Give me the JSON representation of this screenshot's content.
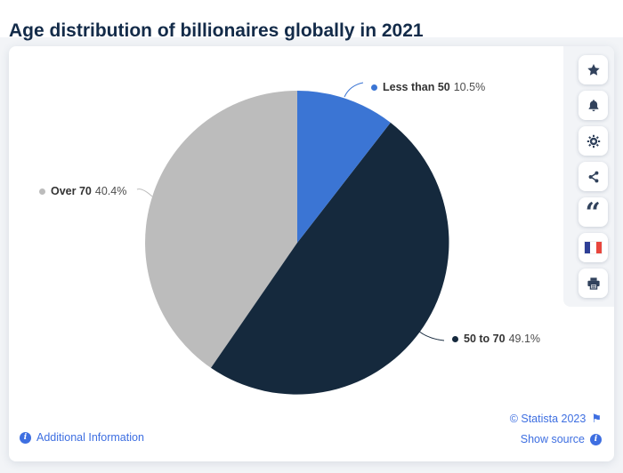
{
  "chart_data": {
    "type": "pie",
    "title": "Age distribution of billionaires globally in 2021",
    "series": [
      {
        "name": "Less than 50",
        "value": 10.5,
        "label": "10.5%",
        "color": "#3b75d4"
      },
      {
        "name": "50 to 70",
        "value": 49.1,
        "label": "49.1%",
        "color": "#15293d"
      },
      {
        "name": "Over 70",
        "value": 40.4,
        "label": "40.4%",
        "color": "#bcbcbc"
      }
    ],
    "unit": "%",
    "start_angle_deg": 0,
    "direction": "clockwise",
    "legend": "none",
    "data_labels": "outside-with-leader-lines"
  },
  "toolbar": {
    "items": [
      {
        "name": "favorite",
        "icon": "star-icon"
      },
      {
        "name": "alerts",
        "icon": "bell-icon"
      },
      {
        "name": "settings",
        "icon": "gear-icon"
      },
      {
        "name": "share",
        "icon": "share-icon"
      },
      {
        "name": "citation",
        "icon": "quote-icon"
      },
      {
        "name": "language-french",
        "icon": "french-flag-icon"
      },
      {
        "name": "print",
        "icon": "printer-icon"
      }
    ]
  },
  "footer": {
    "additional_information_label": "Additional Information",
    "copyright_label": "© Statista 2023",
    "show_source_label": "Show source"
  },
  "colors": {
    "accent_link": "#3e6fe1",
    "title_text": "#132b49",
    "icon": "#31425c",
    "page_bg": "#f2f4f7",
    "card_bg": "#ffffff",
    "label_name": "#333333",
    "label_value": "#4d4d4d"
  }
}
